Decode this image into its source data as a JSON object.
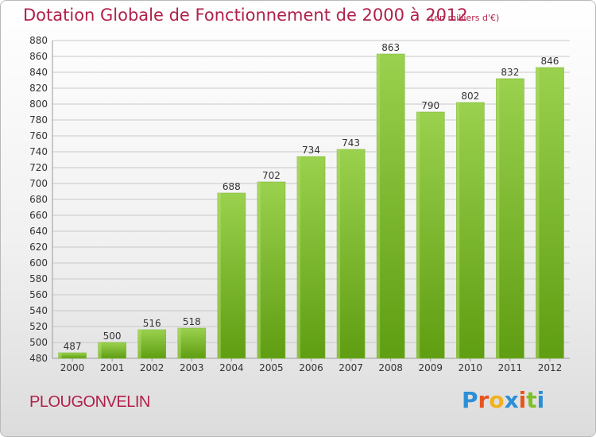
{
  "header": {
    "title": "Dotation Globale de Fonctionnement de 2000 à 2012",
    "unit": "(en milliers d'€)"
  },
  "footer": {
    "commune": "PLOUGONVELIN",
    "brand": "Proxiti",
    "brand_colors": [
      "#2c8fd6",
      "#e8541e",
      "#f2b21c",
      "#2c8fd6",
      "#e8541e",
      "#7fbf2a",
      "#2c8fd6"
    ]
  },
  "colors": {
    "title": "#b0204a",
    "bar_top": "#9ad14e",
    "bar_bottom": "#5f9d12",
    "grid": "#c8c8c8",
    "axis_text": "#333333"
  },
  "chart_data": {
    "type": "bar",
    "title": "Dotation Globale de Fonctionnement de 2000 à 2012",
    "ylabel": "(en milliers d'€)",
    "xlabel": "",
    "categories": [
      "2000",
      "2001",
      "2002",
      "2003",
      "2004",
      "2005",
      "2006",
      "2007",
      "2008",
      "2009",
      "2010",
      "2011",
      "2012"
    ],
    "values": [
      487,
      500,
      516,
      518,
      688,
      702,
      734,
      743,
      863,
      790,
      802,
      832,
      846
    ],
    "ylim": [
      480,
      880
    ],
    "ytick_step": 20,
    "grid": true,
    "legend": "none"
  }
}
